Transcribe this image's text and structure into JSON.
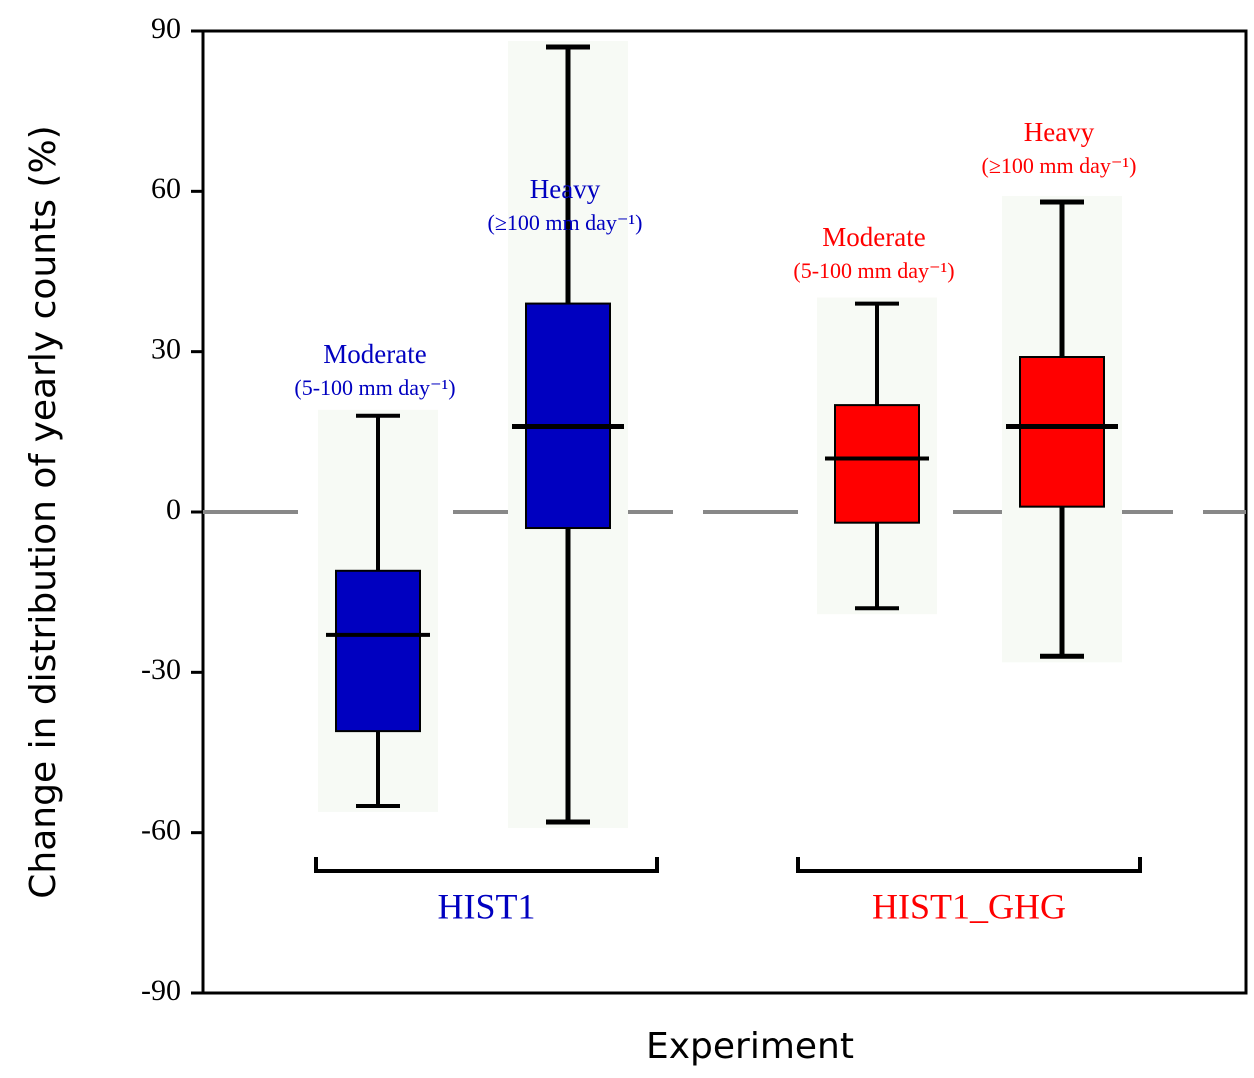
{
  "chart_data": {
    "type": "box",
    "ylabel": "Change in distribution of yearly counts (%)",
    "xlabel": "Experiment",
    "ylim": [
      -90,
      90
    ],
    "yticks": [
      -90,
      -60,
      -30,
      0,
      30,
      60,
      90
    ],
    "reference_line": 0,
    "groups": [
      {
        "name": "HIST1",
        "color": "#0000c0",
        "boxes": [
          {
            "label": "Moderate",
            "sublabel": "(5-100 mm day⁻¹)",
            "whislo": -55,
            "q1": -41,
            "med": -23,
            "q3": -11,
            "whishi": 18
          },
          {
            "label": "Heavy",
            "sublabel": "(≥100 mm day⁻¹)",
            "whislo": -58,
            "q1": -3,
            "med": 16,
            "q3": 39,
            "whishi": 87
          }
        ]
      },
      {
        "name": "HIST1_GHG",
        "color": "#ff0000",
        "boxes": [
          {
            "label": "Moderate",
            "sublabel": "(5-100 mm day⁻¹)",
            "whislo": -18,
            "q1": -2,
            "med": 10,
            "q3": 20,
            "whishi": 39
          },
          {
            "label": "Heavy",
            "sublabel": "(≥100 mm day⁻¹)",
            "whislo": -27,
            "q1": 1,
            "med": 16,
            "q3": 29,
            "whishi": 58
          }
        ]
      }
    ]
  }
}
